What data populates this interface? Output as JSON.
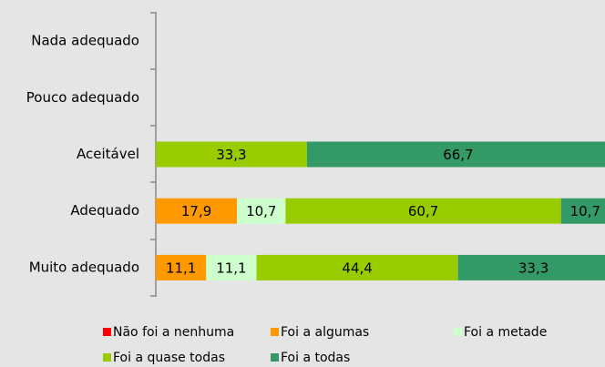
{
  "chart_data": {
    "type": "bar",
    "orientation": "horizontal",
    "stacked": true,
    "categories": [
      "Nada adequado",
      "Pouco adequado",
      "Aceitável",
      "Adequado",
      "Muito adequado"
    ],
    "xlim": [
      0,
      100
    ],
    "series": [
      {
        "name": "Não foi a nenhuma",
        "color": "#ff0000",
        "values": [
          null,
          null,
          null,
          null,
          null
        ],
        "value_labels": [
          null,
          null,
          null,
          null,
          null
        ]
      },
      {
        "name": "Foi a algumas",
        "color": "#ff9900",
        "values": [
          null,
          null,
          null,
          17.9,
          11.1
        ],
        "value_labels": [
          null,
          null,
          null,
          "17,9",
          "11,1"
        ]
      },
      {
        "name": "Foi a metade",
        "color": "#ccffcc",
        "values": [
          null,
          null,
          null,
          10.7,
          11.1
        ],
        "value_labels": [
          null,
          null,
          null,
          "10,7",
          "11,1"
        ]
      },
      {
        "name": "Foi a quase todas",
        "color": "#99cc00",
        "values": [
          null,
          null,
          33.3,
          60.7,
          44.4
        ],
        "value_labels": [
          null,
          null,
          "33,3",
          "60,7",
          "44,4"
        ]
      },
      {
        "name": "Foi a todas",
        "color": "#339966",
        "values": [
          null,
          null,
          66.7,
          10.7,
          33.3
        ],
        "value_labels": [
          null,
          null,
          "66,7",
          "10,7",
          "33,3"
        ]
      }
    ],
    "legend": "bottom"
  }
}
